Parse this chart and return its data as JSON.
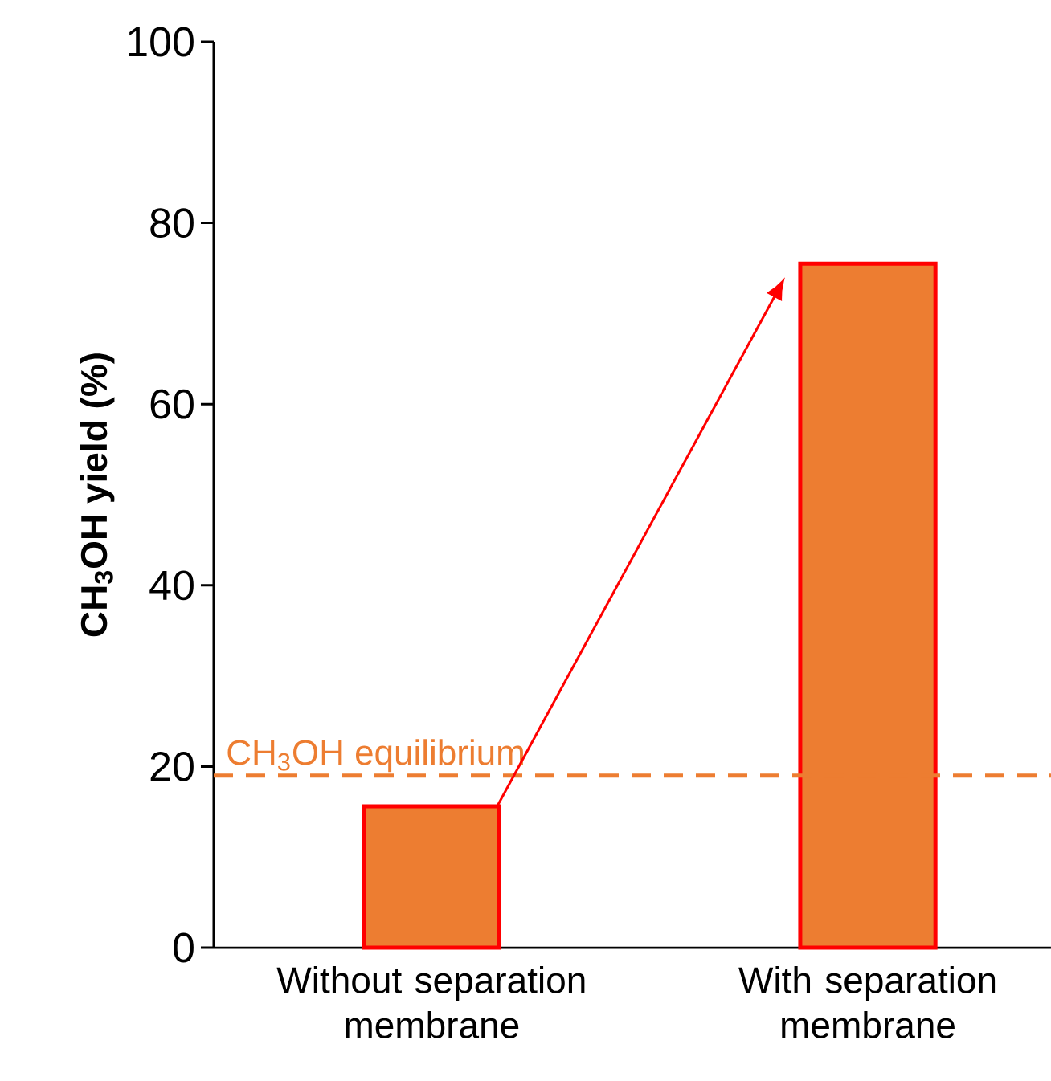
{
  "chart_data": {
    "type": "bar",
    "categories": [
      "Without separation membrane",
      "With separation membrane"
    ],
    "values": [
      15.6,
      75.5
    ],
    "color": "#ed7d31",
    "ylabel": "CH$_{3}$OH yield (%)",
    "ylim": [
      0,
      100
    ],
    "yticks": [
      0,
      20,
      40,
      60,
      80,
      100
    ],
    "ref_lines": [
      {
        "axis": "y",
        "value": 19,
        "label": "CH$_{3}$OH equilibrium",
        "color": "#ed7d31",
        "line_style": "dashed"
      }
    ]
  }
}
